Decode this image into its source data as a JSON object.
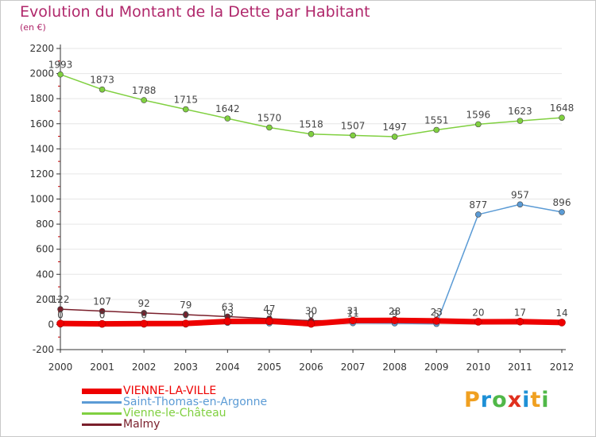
{
  "header": {
    "title": "Evolution du Montant de la Dette par Habitant",
    "unit_label": "(en €)"
  },
  "logo": {
    "text": "Proxiti",
    "letters": [
      {
        "ch": "P",
        "color": "#f0a020"
      },
      {
        "ch": "r",
        "color": "#1e90d6"
      },
      {
        "ch": "o",
        "color": "#50b848"
      },
      {
        "ch": "x",
        "color": "#e0301e"
      },
      {
        "ch": "i",
        "color": "#1e90d6"
      },
      {
        "ch": "t",
        "color": "#f0a020"
      },
      {
        "ch": "i",
        "color": "#50b848"
      }
    ]
  },
  "colors": {
    "title": "#b0276b",
    "axis": "#333333",
    "grid": "#e6e6e6"
  },
  "chart_data": {
    "type": "line",
    "title": "Evolution du Montant de la Dette par Habitant",
    "ylabel": "(en €)",
    "x": [
      "2000",
      "2001",
      "2002",
      "2003",
      "2004",
      "2005",
      "2006",
      "2007",
      "2008",
      "2009",
      "2010",
      "2011",
      "2012"
    ],
    "ylim": [
      -200,
      2200
    ],
    "yticks": [
      -200,
      0,
      200,
      400,
      600,
      800,
      1000,
      1200,
      1400,
      1600,
      1800,
      2000,
      2200
    ],
    "legend_position": "bottom-left",
    "series": [
      {
        "name": "VIENNE-LA-VILLE",
        "color": "#ee0000",
        "values": [
          8,
          5,
          7,
          8,
          25,
          26,
          5,
          32,
          33,
          29,
          22,
          23,
          16
        ],
        "labels": [
          "",
          "",
          "",
          "",
          "",
          "",
          "",
          "",
          "",
          "",
          "",
          "",
          ""
        ]
      },
      {
        "name": "Saint-Thomas-en-Argonne",
        "color": "#5b9bd5",
        "values": [
          0,
          0,
          0,
          0,
          13,
          9,
          0,
          11,
          9,
          5,
          877,
          957,
          896
        ],
        "labels": [
          "0",
          "0",
          "0",
          "0",
          "13",
          "9",
          "0",
          "11",
          "9",
          "5",
          "877",
          "957",
          "896"
        ]
      },
      {
        "name": "Vienne-le-Château",
        "color": "#80d040",
        "values": [
          1993,
          1873,
          1788,
          1715,
          1642,
          1570,
          1518,
          1507,
          1497,
          1551,
          1596,
          1623,
          1648
        ],
        "labels": [
          "1993",
          "1873",
          "1788",
          "1715",
          "1642",
          "1570",
          "1518",
          "1507",
          "1497",
          "1551",
          "1596",
          "1623",
          "1648"
        ]
      },
      {
        "name": "Malmy",
        "color": "#7a1f2b",
        "values": [
          122,
          107,
          92,
          79,
          63,
          47,
          30,
          31,
          28,
          23,
          20,
          17,
          14
        ],
        "labels": [
          "122",
          "107",
          "92",
          "79",
          "63",
          "47",
          "30",
          "31",
          "28",
          "23",
          "20",
          "17",
          "14"
        ]
      }
    ]
  }
}
